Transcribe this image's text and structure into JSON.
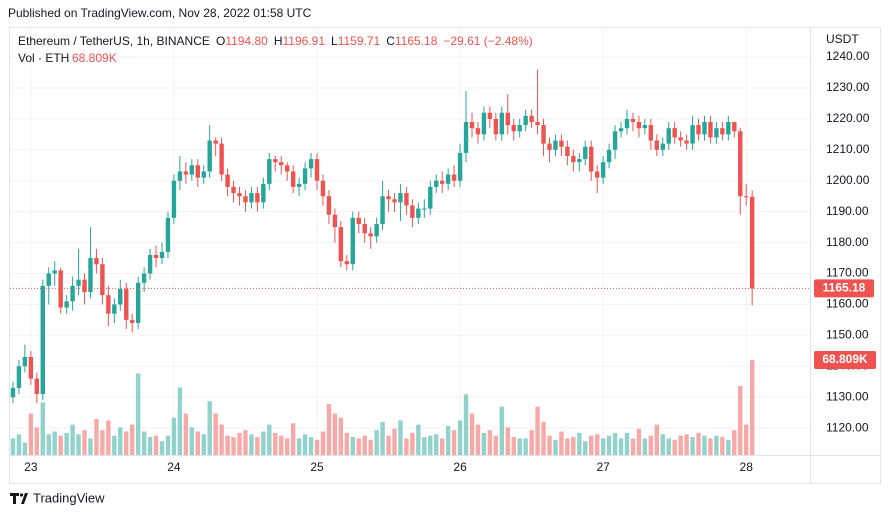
{
  "header": {
    "published": "Published on TradingView.com, Nov 28, 2022 01:58 UTC"
  },
  "footer": {
    "brand": "TradingView"
  },
  "chart_data": {
    "type": "candlestick",
    "title": "Ethereum / TetherUS, 1h, BINANCE",
    "ohlc_labels": [
      "O",
      "H",
      "L",
      "C"
    ],
    "ohlc_value_labels": [
      "1194.80",
      "1196.91",
      "1159.71",
      "1165.18"
    ],
    "change_label": "−29.61 (−2.48%)",
    "volume_title": "Vol · ETH",
    "volume_value_label": "68.809K",
    "y_axis_label": "USDT",
    "last_price_label": "1165.18",
    "up_color": "#26a69a",
    "down_color": "#ef5350",
    "grid": true,
    "xlim": [
      -0.5,
      133.7
    ],
    "xticks": [
      {
        "value": 3,
        "label": "23"
      },
      {
        "value": 27,
        "label": "24"
      },
      {
        "value": 51,
        "label": "25"
      },
      {
        "value": 75,
        "label": "26"
      },
      {
        "value": 99,
        "label": "27"
      },
      {
        "value": 123,
        "label": "28"
      }
    ],
    "ylim": [
      1111.3,
      1249.4
    ],
    "yticks": [
      {
        "value": 1120,
        "label": "1120.00"
      },
      {
        "value": 1130,
        "label": "1130.00"
      },
      {
        "value": 1140,
        "label": "1140.00"
      },
      {
        "value": 1150,
        "label": "1150.00"
      },
      {
        "value": 1160,
        "label": "1160.00"
      },
      {
        "value": 1170,
        "label": "1170.00"
      },
      {
        "value": 1180,
        "label": "1180.00"
      },
      {
        "value": 1190,
        "label": "1190.00"
      },
      {
        "value": 1200,
        "label": "1200.00"
      },
      {
        "value": 1210,
        "label": "1210.00"
      },
      {
        "value": 1220,
        "label": "1220.00"
      },
      {
        "value": 1230,
        "label": "1230.00"
      },
      {
        "value": 1240,
        "label": "1240.00"
      }
    ],
    "open": [
      1130,
      1133,
      1140,
      1143,
      1136,
      1131,
      1166,
      1170,
      1171,
      1159,
      1161,
      1166,
      1168,
      1164,
      1175,
      1173,
      1163,
      1157,
      1160,
      1165,
      1155,
      1154,
      1167,
      1170,
      1176,
      1175,
      1177,
      1188,
      1200,
      1203,
      1202,
      1205,
      1201,
      1203,
      1213,
      1212,
      1202,
      1198,
      1196,
      1195,
      1193,
      1196,
      1193,
      1199,
      1207,
      1206,
      1205,
      1203,
      1198,
      1199,
      1204,
      1207,
      1200,
      1195,
      1189,
      1185,
      1174,
      1173,
      1188,
      1186,
      1183,
      1182,
      1186,
      1195,
      1194,
      1193,
      1196,
      1192,
      1188,
      1191,
      1191,
      1198,
      1200,
      1199,
      1202,
      1200,
      1209,
      1219,
      1217,
      1215,
      1222,
      1220,
      1215,
      1222,
      1218,
      1216,
      1218,
      1221,
      1219,
      1218,
      1212,
      1210,
      1213,
      1211,
      1208,
      1206,
      1207,
      1211,
      1203,
      1201,
      1206,
      1210,
      1216,
      1217,
      1220,
      1219,
      1217,
      1218,
      1213,
      1210,
      1212,
      1217,
      1214,
      1213,
      1212,
      1218,
      1215,
      1219,
      1214,
      1217,
      1215,
      1219,
      1216,
      1195,
      1194.8
    ],
    "high": [
      1135,
      1142,
      1147,
      1145,
      1138,
      1168,
      1172,
      1174,
      1172,
      1163,
      1169,
      1178,
      1170,
      1185,
      1178,
      1175,
      1166,
      1162,
      1168,
      1167,
      1157,
      1169,
      1172,
      1178,
      1179,
      1180,
      1190,
      1202,
      1208,
      1206,
      1207,
      1207,
      1205,
      1218,
      1214,
      1214,
      1204,
      1200,
      1198,
      1197,
      1198,
      1198,
      1201,
      1209,
      1208,
      1208,
      1206,
      1205,
      1201,
      1206,
      1209,
      1209,
      1202,
      1197,
      1191,
      1187,
      1176,
      1190,
      1190,
      1188,
      1185,
      1188,
      1200,
      1197,
      1196,
      1199,
      1198,
      1194,
      1193,
      1194,
      1200,
      1202,
      1203,
      1204,
      1205,
      1212,
      1229,
      1222,
      1219,
      1224,
      1224,
      1222,
      1224,
      1228,
      1220,
      1220,
      1223,
      1223,
      1236,
      1220,
      1214,
      1215,
      1215,
      1213,
      1210,
      1209,
      1213,
      1213,
      1205,
      1208,
      1212,
      1218,
      1219,
      1223,
      1222,
      1221,
      1220,
      1220,
      1215,
      1214,
      1219,
      1219,
      1216,
      1215,
      1221,
      1220,
      1221,
      1221,
      1219,
      1219,
      1221,
      1219,
      1217,
      1199,
      1196.91
    ],
    "low": [
      1128,
      1131,
      1138,
      1134,
      1128,
      1129,
      1160,
      1166,
      1157,
      1157,
      1158,
      1163,
      1160,
      1162,
      1170,
      1160,
      1153,
      1154,
      1158,
      1152,
      1151,
      1152,
      1164,
      1168,
      1172,
      1173,
      1175,
      1186,
      1197,
      1199,
      1200,
      1198,
      1199,
      1201,
      1208,
      1200,
      1195,
      1193,
      1192,
      1190,
      1191,
      1190,
      1191,
      1197,
      1203,
      1202,
      1200,
      1196,
      1195,
      1197,
      1201,
      1197,
      1192,
      1186,
      1180,
      1172,
      1171,
      1171,
      1183,
      1180,
      1178,
      1180,
      1184,
      1190,
      1190,
      1187,
      1189,
      1185,
      1186,
      1188,
      1189,
      1196,
      1196,
      1197,
      1198,
      1198,
      1206,
      1214,
      1212,
      1213,
      1217,
      1213,
      1213,
      1215,
      1213,
      1214,
      1216,
      1217,
      1215,
      1208,
      1206,
      1208,
      1208,
      1205,
      1203,
      1203,
      1205,
      1200,
      1196,
      1199,
      1204,
      1207,
      1214,
      1215,
      1216,
      1214,
      1215,
      1210,
      1208,
      1208,
      1210,
      1212,
      1211,
      1210,
      1210,
      1213,
      1213,
      1212,
      1212,
      1213,
      1213,
      1214,
      1189,
      1192,
      1159.71
    ],
    "close": [
      1133,
      1140,
      1143,
      1136,
      1131,
      1166,
      1170,
      1171,
      1159,
      1161,
      1166,
      1168,
      1164,
      1175,
      1173,
      1163,
      1157,
      1160,
      1165,
      1155,
      1154,
      1167,
      1170,
      1176,
      1175,
      1177,
      1188,
      1200,
      1203,
      1202,
      1205,
      1201,
      1203,
      1213,
      1212,
      1202,
      1198,
      1196,
      1195,
      1193,
      1196,
      1193,
      1199,
      1207,
      1206,
      1205,
      1203,
      1198,
      1199,
      1204,
      1207,
      1200,
      1195,
      1189,
      1185,
      1174,
      1173,
      1188,
      1186,
      1183,
      1182,
      1186,
      1195,
      1194,
      1193,
      1196,
      1192,
      1188,
      1191,
      1191,
      1198,
      1200,
      1199,
      1202,
      1200,
      1209,
      1219,
      1217,
      1215,
      1222,
      1220,
      1215,
      1222,
      1218,
      1216,
      1218,
      1221,
      1219,
      1218,
      1212,
      1210,
      1213,
      1211,
      1208,
      1206,
      1207,
      1211,
      1203,
      1201,
      1206,
      1210,
      1216,
      1217,
      1220,
      1219,
      1217,
      1218,
      1213,
      1210,
      1212,
      1217,
      1214,
      1213,
      1212,
      1218,
      1215,
      1219,
      1214,
      1217,
      1215,
      1219,
      1216,
      1195,
      1194.8,
      1165.18
    ],
    "volume": [
      12000,
      15000,
      9000,
      30000,
      20000,
      38000,
      15000,
      17000,
      14000,
      16000,
      22000,
      15000,
      18000,
      12000,
      26000,
      18000,
      25000,
      14000,
      20000,
      17000,
      22000,
      59000,
      17000,
      13000,
      14000,
      10000,
      14000,
      27000,
      49000,
      30000,
      20000,
      17000,
      15000,
      39000,
      30000,
      22000,
      14000,
      13000,
      16000,
      18000,
      15000,
      13000,
      17000,
      22000,
      16000,
      14000,
      12000,
      23000,
      12000,
      15000,
      13000,
      11000,
      17000,
      37000,
      30000,
      27000,
      16000,
      13000,
      12000,
      14000,
      11000,
      18000,
      24000,
      14000,
      19000,
      25000,
      12000,
      16000,
      22000,
      13000,
      14000,
      15000,
      12000,
      21000,
      18000,
      25000,
      44000,
      30000,
      22000,
      16000,
      18000,
      14000,
      35000,
      20000,
      13000,
      12000,
      12000,
      18000,
      35000,
      24000,
      14000,
      11000,
      17000,
      12000,
      13000,
      16000,
      10000,
      14000,
      15000,
      12000,
      14000,
      16000,
      12000,
      16000,
      12000,
      19000,
      12000,
      14000,
      22000,
      15000,
      12000,
      11000,
      14000,
      15000,
      13000,
      16000,
      14000,
      12000,
      14000,
      13000,
      11000,
      18000,
      50000,
      22000,
      68809
    ]
  }
}
